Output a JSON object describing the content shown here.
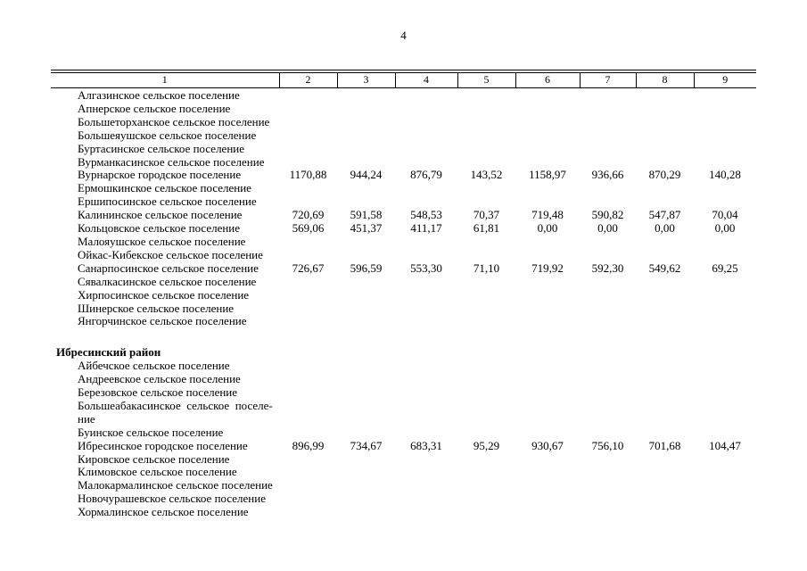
{
  "page_number": "4",
  "table": {
    "columns": [
      "1",
      "2",
      "3",
      "4",
      "5",
      "6",
      "7",
      "8",
      "9"
    ],
    "sections": [
      {
        "title": null,
        "rows": [
          {
            "name": "Алгазинское сельское поселение",
            "values": []
          },
          {
            "name": "Апнерское сельское поселение",
            "values": []
          },
          {
            "name": "Большеторханское сельское поселение",
            "values": []
          },
          {
            "name": "Большеяушское сельское поселение",
            "values": []
          },
          {
            "name": "Буртасинское сельское поселение",
            "values": []
          },
          {
            "name": "Вурманкасинское сельское поселение",
            "values": []
          },
          {
            "name": "Вурнарское городское поселение",
            "values": [
              "1170,88",
              "944,24",
              "876,79",
              "143,52",
              "1158,97",
              "936,66",
              "870,29",
              "140,28"
            ]
          },
          {
            "name": "Ермошкинское сельское поселение",
            "values": []
          },
          {
            "name": "Ершипосинское сельское поселение",
            "values": []
          },
          {
            "name": "Калининское сельское поселение",
            "values": [
              "720,69",
              "591,58",
              "548,53",
              "70,37",
              "719,48",
              "590,82",
              "547,87",
              "70,04"
            ]
          },
          {
            "name": "Кольцовское сельское поселение",
            "values": [
              "569,06",
              "451,37",
              "411,17",
              "61,81",
              "0,00",
              "0,00",
              "0,00",
              "0,00"
            ]
          },
          {
            "name": "Малояушское сельское поселение",
            "values": []
          },
          {
            "name": "Ойкас-Кибекское сельское поселение",
            "values": []
          },
          {
            "name": "Санарпосинское сельское поселение",
            "values": [
              "726,67",
              "596,59",
              "553,30",
              "71,10",
              "719,92",
              "592,30",
              "549,62",
              "69,25"
            ]
          },
          {
            "name": "Сявалкасинское сельское поселение",
            "values": []
          },
          {
            "name": "Хирпосинское сельское поселение",
            "values": []
          },
          {
            "name": "Шинерское сельское поселение",
            "values": []
          },
          {
            "name": "Янгорчинское сельское поселение",
            "values": []
          }
        ]
      },
      {
        "title": "Ибресинский район",
        "rows": [
          {
            "name": "Айбечское сельское поселение",
            "values": []
          },
          {
            "name": "Андреевское сельское поселение",
            "values": []
          },
          {
            "name": "Березовское сельское поселение",
            "values": []
          },
          {
            "name": "Большеабакасинское  сельское  поселе-\nние",
            "values": []
          },
          {
            "name": "Буинское сельское поселение",
            "values": []
          },
          {
            "name": "Ибресинское городское поселение",
            "values": [
              "896,99",
              "734,67",
              "683,31",
              "95,29",
              "930,67",
              "756,10",
              "701,68",
              "104,47"
            ]
          },
          {
            "name": "Кировское сельское поселение",
            "values": []
          },
          {
            "name": "Климовское сельское поселение",
            "values": []
          },
          {
            "name": "Малокармалинское сельское поселение",
            "values": []
          },
          {
            "name": "Новочурашевское сельское поселение",
            "values": []
          },
          {
            "name": "Хормалинское сельское поселение",
            "values": []
          }
        ]
      }
    ]
  }
}
